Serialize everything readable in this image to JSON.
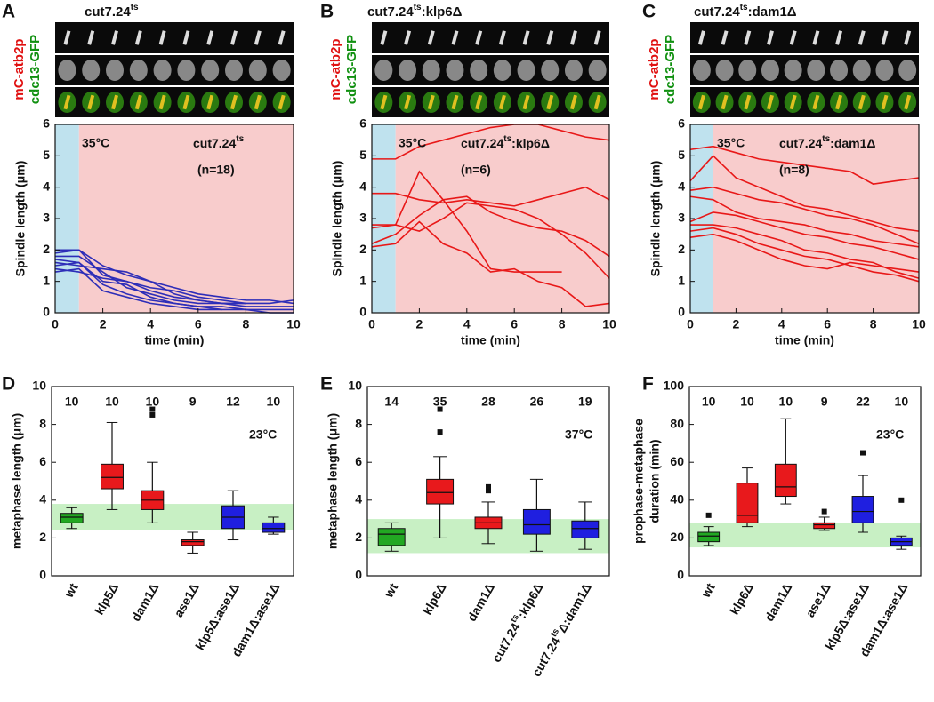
{
  "chart_data": [
    {
      "type": "line",
      "panel": "A",
      "title": [
        "cut7.24",
        "ts"
      ],
      "channel_labels": [
        "mC-atb2p",
        "cdc13-GFP"
      ],
      "xlabel": "time (min)",
      "ylabel": "Spindle length (μm)",
      "xlim": [
        0,
        10
      ],
      "xticks": [
        0,
        2,
        4,
        6,
        8,
        10
      ],
      "ylim": [
        0,
        6
      ],
      "yticks": [
        0,
        1,
        2,
        3,
        4,
        5,
        6
      ],
      "regions": [
        {
          "x": [
            0,
            1
          ],
          "color": "#bfe2ee"
        },
        {
          "x": [
            1,
            10
          ],
          "color": "#f8cccc"
        }
      ],
      "annotations": {
        "temperature": "35°C",
        "strain": [
          "cut7.24",
          "ts"
        ],
        "n": "(n=18)"
      },
      "x": [
        0,
        1,
        2,
        3,
        4,
        5,
        6,
        7,
        8,
        9,
        10
      ],
      "series": [
        {
          "color": "#2d2db8",
          "values": [
            2.0,
            2.0,
            1.5,
            1.2,
            1.0,
            0.8,
            0.6,
            0.5,
            0.4,
            0.4,
            0.3
          ]
        },
        {
          "color": "#2d2db8",
          "values": [
            1.9,
            2.0,
            1.2,
            1.0,
            0.7,
            0.5,
            0.4,
            0.3,
            0.3,
            null,
            null
          ]
        },
        {
          "color": "#2d2db8",
          "values": [
            1.8,
            1.8,
            1.3,
            0.8,
            0.6,
            0.4,
            0.3,
            0.3,
            0.2,
            0.2,
            0.2
          ]
        },
        {
          "color": "#2d2db8",
          "values": [
            1.7,
            1.6,
            1.0,
            0.9,
            0.5,
            0.3,
            0.2,
            0.1,
            null,
            null,
            null
          ]
        },
        {
          "color": "#2d2db8",
          "values": [
            1.6,
            1.5,
            1.4,
            1.3,
            1.0,
            0.6,
            0.4,
            0.3,
            0.3,
            0.3,
            0.4
          ]
        },
        {
          "color": "#2d2db8",
          "values": [
            1.5,
            1.6,
            0.9,
            0.6,
            0.4,
            0.3,
            0.2,
            0.2,
            0.1,
            0.1,
            0.1
          ]
        },
        {
          "color": "#2d2db8",
          "values": [
            1.4,
            1.3,
            1.1,
            1.0,
            0.8,
            0.7,
            0.5,
            0.4,
            0.3,
            null,
            null
          ]
        },
        {
          "color": "#2d2db8",
          "values": [
            1.3,
            1.4,
            0.7,
            0.5,
            0.3,
            0.2,
            0.1,
            0.1,
            0.1,
            0.0,
            0.0
          ]
        }
      ]
    },
    {
      "type": "line",
      "panel": "B",
      "title": [
        "cut7.24",
        "ts",
        ":klp6Δ"
      ],
      "channel_labels": [
        "mC-atb2p",
        "cdc13-GFP"
      ],
      "xlabel": "time (min)",
      "ylabel": "Spindle length (μm)",
      "xlim": [
        0,
        10
      ],
      "xticks": [
        0,
        2,
        4,
        6,
        8,
        10
      ],
      "ylim": [
        0,
        6
      ],
      "yticks": [
        0,
        1,
        2,
        3,
        4,
        5,
        6
      ],
      "regions": [
        {
          "x": [
            0,
            1
          ],
          "color": "#bfe2ee"
        },
        {
          "x": [
            1,
            10
          ],
          "color": "#f8cccc"
        }
      ],
      "annotations": {
        "temperature": "35°C",
        "strain": [
          "cut7.24",
          "ts",
          ":klp6Δ"
        ],
        "n": "(n=6)"
      },
      "x": [
        0,
        1,
        2,
        3,
        4,
        5,
        6,
        7,
        8,
        9,
        10
      ],
      "series": [
        {
          "color": "#e81818",
          "values": [
            4.9,
            4.9,
            5.3,
            5.5,
            5.7,
            5.9,
            6.0,
            6.0,
            5.8,
            5.6,
            5.5
          ]
        },
        {
          "color": "#e81818",
          "values": [
            3.8,
            3.8,
            3.6,
            3.5,
            3.6,
            3.5,
            3.4,
            3.6,
            3.8,
            4.0,
            3.6
          ]
        },
        {
          "color": "#e81818",
          "values": [
            2.8,
            2.8,
            2.6,
            3.0,
            3.5,
            3.4,
            3.3,
            3.0,
            2.5,
            1.9,
            1.1
          ]
        },
        {
          "color": "#e81818",
          "values": [
            2.2,
            2.5,
            3.1,
            3.6,
            3.7,
            3.2,
            2.9,
            2.7,
            2.6,
            2.3,
            1.8
          ]
        },
        {
          "color": "#e81818",
          "values": [
            2.7,
            2.8,
            4.5,
            3.6,
            2.6,
            1.4,
            1.3,
            1.3,
            1.3,
            null,
            null
          ]
        },
        {
          "color": "#e81818",
          "values": [
            2.1,
            2.2,
            2.9,
            2.2,
            1.9,
            1.3,
            1.4,
            1.0,
            0.8,
            0.2,
            0.3
          ]
        }
      ]
    },
    {
      "type": "line",
      "panel": "C",
      "title": [
        "cut7.24",
        "ts",
        ":dam1Δ"
      ],
      "channel_labels": [
        "mC-atb2p",
        "cdc13-GFP"
      ],
      "xlabel": "time (min)",
      "ylabel": "Spindle length (μm)",
      "xlim": [
        0,
        10
      ],
      "xticks": [
        0,
        2,
        4,
        6,
        8,
        10
      ],
      "ylim": [
        0,
        6
      ],
      "yticks": [
        0,
        1,
        2,
        3,
        4,
        5,
        6
      ],
      "regions": [
        {
          "x": [
            0,
            1
          ],
          "color": "#bfe2ee"
        },
        {
          "x": [
            1,
            10
          ],
          "color": "#f8cccc"
        }
      ],
      "annotations": {
        "temperature": "35°C",
        "strain": [
          "cut7.24",
          "ts",
          ":dam1Δ"
        ],
        "n": "(n=8)"
      },
      "x": [
        0,
        1,
        2,
        3,
        4,
        5,
        6,
        7,
        8,
        9,
        10
      ],
      "series": [
        {
          "color": "#e81818",
          "values": [
            5.2,
            5.3,
            5.1,
            4.9,
            4.8,
            4.7,
            4.6,
            4.5,
            4.1,
            4.2,
            4.3
          ]
        },
        {
          "color": "#e81818",
          "values": [
            4.2,
            5.0,
            4.3,
            4.0,
            3.7,
            3.4,
            3.3,
            3.1,
            2.9,
            2.7,
            2.6
          ]
        },
        {
          "color": "#e81818",
          "values": [
            3.9,
            4.0,
            3.8,
            3.6,
            3.5,
            3.3,
            3.1,
            3.0,
            2.8,
            2.5,
            2.2
          ]
        },
        {
          "color": "#e81818",
          "values": [
            3.7,
            3.6,
            3.2,
            3.0,
            2.9,
            2.8,
            2.6,
            2.5,
            2.3,
            2.2,
            2.1
          ]
        },
        {
          "color": "#e81818",
          "values": [
            2.9,
            3.2,
            3.1,
            2.9,
            2.7,
            2.5,
            2.4,
            2.2,
            2.1,
            1.9,
            1.7
          ]
        },
        {
          "color": "#e81818",
          "values": [
            2.8,
            2.8,
            2.7,
            2.5,
            2.3,
            2.0,
            1.9,
            1.7,
            1.6,
            1.3,
            1.1
          ]
        },
        {
          "color": "#e81818",
          "values": [
            2.6,
            2.7,
            2.5,
            2.2,
            2.0,
            1.8,
            1.7,
            1.5,
            1.3,
            1.2,
            1.0
          ]
        },
        {
          "color": "#e81818",
          "values": [
            2.4,
            2.5,
            2.3,
            2.0,
            1.7,
            1.5,
            1.4,
            1.6,
            1.5,
            1.4,
            1.3
          ]
        }
      ]
    },
    {
      "type": "box",
      "panel": "D",
      "ylabel": [
        "metaphase length (μm)"
      ],
      "ylim": [
        0,
        10
      ],
      "yticks": [
        0,
        2,
        4,
        6,
        8,
        10
      ],
      "band": [
        2.4,
        3.8
      ],
      "band_color": "#c8f0c4",
      "annotation": "23°C",
      "categories": [
        [
          "wt"
        ],
        [
          "klp5Δ"
        ],
        [
          "dam1Δ"
        ],
        [
          "ase1Δ"
        ],
        [
          "klp5Δ:ase1Δ"
        ],
        [
          "dam1Δ:ase1Δ"
        ]
      ],
      "n_labels": [
        10,
        10,
        10,
        9,
        12,
        10
      ],
      "boxes": [
        {
          "min": 2.5,
          "q1": 2.8,
          "median": 3.1,
          "q3": 3.3,
          "max": 3.6,
          "outliers": [],
          "color": "#22a822"
        },
        {
          "min": 3.5,
          "q1": 4.6,
          "median": 5.2,
          "q3": 5.9,
          "max": 8.1,
          "outliers": [],
          "color": "#e8191c"
        },
        {
          "min": 2.8,
          "q1": 3.5,
          "median": 4.0,
          "q3": 4.5,
          "max": 6.0,
          "outliers": [
            8.5,
            8.8
          ],
          "color": "#e8191c"
        },
        {
          "min": 1.2,
          "q1": 1.6,
          "median": 1.8,
          "q3": 1.9,
          "max": 2.3,
          "outliers": [],
          "color": "#e8191c"
        },
        {
          "min": 1.9,
          "q1": 2.5,
          "median": 3.1,
          "q3": 3.7,
          "max": 4.5,
          "outliers": [],
          "color": "#1f1fe0"
        },
        {
          "min": 2.2,
          "q1": 2.3,
          "median": 2.5,
          "q3": 2.8,
          "max": 3.1,
          "outliers": [],
          "color": "#1f1fe0"
        }
      ]
    },
    {
      "type": "box",
      "panel": "E",
      "ylabel": [
        "metaphase length (μm)"
      ],
      "ylim": [
        0,
        10
      ],
      "yticks": [
        0,
        2,
        4,
        6,
        8,
        10
      ],
      "band": [
        1.2,
        3.0
      ],
      "band_color": "#c8f0c4",
      "annotation": "37°C",
      "categories": [
        [
          "wt"
        ],
        [
          "klp6Δ"
        ],
        [
          "dam1Δ"
        ],
        [
          "cut7.24",
          "ts",
          ":klp6Δ"
        ],
        [
          "cut7.24",
          "ts",
          "Δ:dam1Δ"
        ]
      ],
      "n_labels": [
        14,
        35,
        28,
        26,
        19
      ],
      "boxes": [
        {
          "min": 1.3,
          "q1": 1.6,
          "median": 2.2,
          "q3": 2.5,
          "max": 2.8,
          "outliers": [],
          "color": "#22a822"
        },
        {
          "min": 2.0,
          "q1": 3.8,
          "median": 4.4,
          "q3": 5.1,
          "max": 6.3,
          "outliers": [
            7.6,
            8.8
          ],
          "color": "#e8191c"
        },
        {
          "min": 1.7,
          "q1": 2.5,
          "median": 2.8,
          "q3": 3.1,
          "max": 3.9,
          "outliers": [
            4.5,
            4.7
          ],
          "color": "#e8191c"
        },
        {
          "min": 1.3,
          "q1": 2.2,
          "median": 2.7,
          "q3": 3.5,
          "max": 5.1,
          "outliers": [],
          "color": "#1f1fe0"
        },
        {
          "min": 1.4,
          "q1": 2.0,
          "median": 2.5,
          "q3": 2.9,
          "max": 3.9,
          "outliers": [],
          "color": "#1f1fe0"
        }
      ]
    },
    {
      "type": "box",
      "panel": "F",
      "ylabel": [
        "prophase-metaphase",
        "duration (min)"
      ],
      "ylim": [
        0,
        100
      ],
      "yticks": [
        0,
        20,
        40,
        60,
        80,
        100
      ],
      "band": [
        15,
        28
      ],
      "band_color": "#c8f0c4",
      "annotation": "23°C",
      "categories": [
        [
          "wt"
        ],
        [
          "klp6Δ"
        ],
        [
          "dam1Δ"
        ],
        [
          "ase1Δ"
        ],
        [
          "klp5Δ:ase1Δ"
        ],
        [
          "dam1Δ:ase1Δ"
        ]
      ],
      "n_labels": [
        10,
        10,
        10,
        9,
        22,
        10
      ],
      "boxes": [
        {
          "min": 16,
          "q1": 18,
          "median": 21,
          "q3": 23,
          "max": 26,
          "outliers": [
            32
          ],
          "color": "#22a822"
        },
        {
          "min": 26,
          "q1": 28,
          "median": 32,
          "q3": 49,
          "max": 57,
          "outliers": [],
          "color": "#e8191c"
        },
        {
          "min": 38,
          "q1": 42,
          "median": 47,
          "q3": 59,
          "max": 83,
          "outliers": [],
          "color": "#e8191c"
        },
        {
          "min": 24,
          "q1": 25,
          "median": 27,
          "q3": 28,
          "max": 31,
          "outliers": [
            34
          ],
          "color": "#e8191c"
        },
        {
          "min": 23,
          "q1": 28,
          "median": 34,
          "q3": 42,
          "max": 53,
          "outliers": [
            65
          ],
          "color": "#1f1fe0"
        },
        {
          "min": 14,
          "q1": 16,
          "median": 18,
          "q3": 20,
          "max": 21,
          "outliers": [
            40
          ],
          "color": "#1f1fe0"
        }
      ]
    }
  ]
}
